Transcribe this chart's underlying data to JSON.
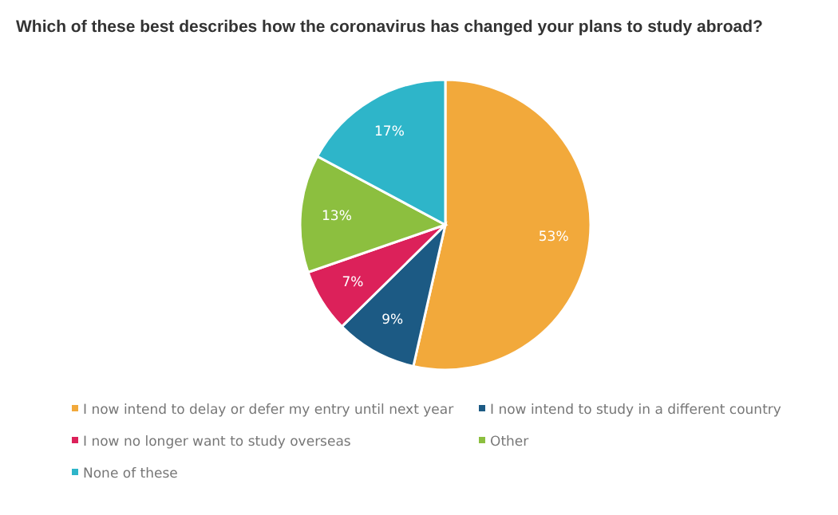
{
  "chart_data": {
    "type": "pie",
    "title": "Which of these best describes how the coronavirus has changed your plans to study abroad?",
    "categories": [
      "I now intend to delay or defer my entry until next year",
      "I now intend to study in a different country",
      "I now no longer want to study overseas",
      "Other",
      "None of these"
    ],
    "values": [
      53,
      9,
      7,
      13,
      17
    ],
    "value_labels": [
      "53%",
      "9%",
      "7%",
      "13%",
      "17%"
    ],
    "colors": [
      "#f2a93b",
      "#1c5a84",
      "#dc215a",
      "#8cbf3f",
      "#2eb5c9"
    ],
    "legend": "bottom"
  }
}
